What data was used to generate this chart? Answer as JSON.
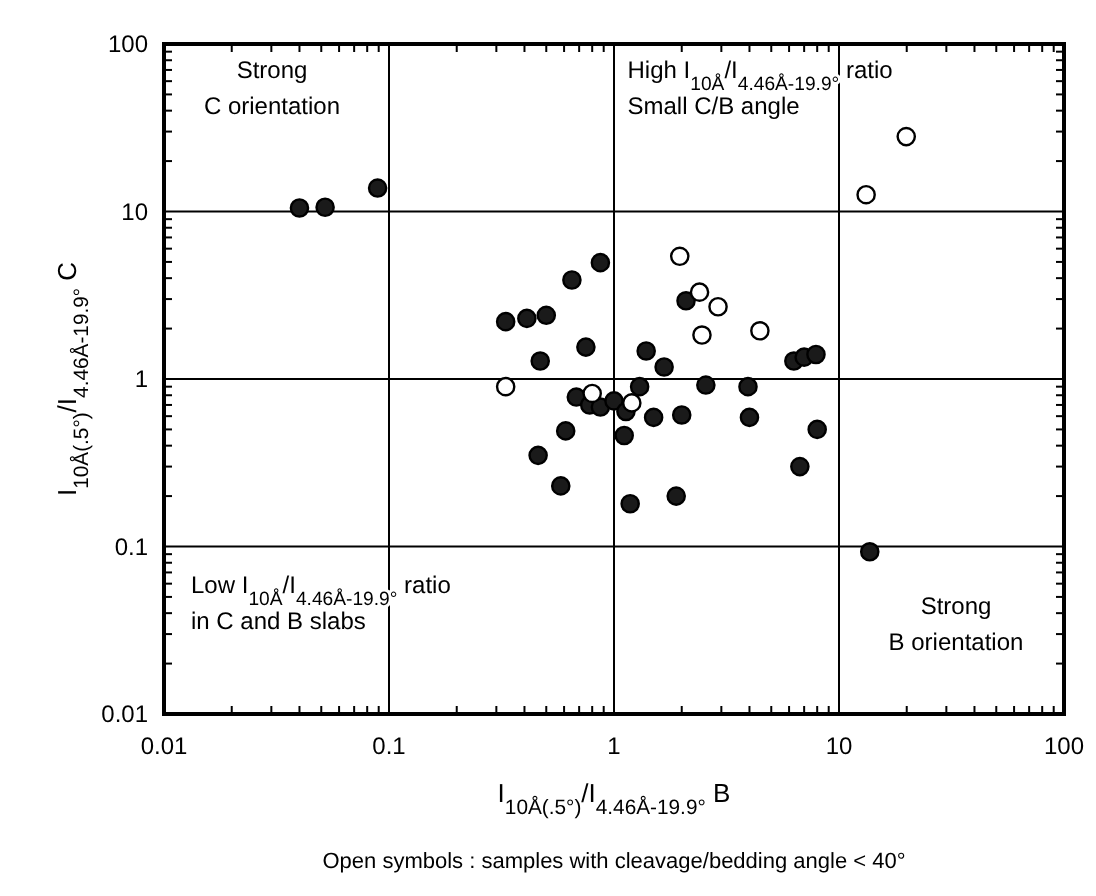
{
  "chart_data": {
    "type": "scatter",
    "xlabel": "I$_{10Å(.5°)}$/I$_{4.46Å-19.9°}$ B",
    "ylabel": "I$_{10Å(.5°)}$/I$_{4.46Å-19.9°}$ C",
    "log": "xy",
    "grid": true,
    "marker": "circle",
    "xlim": [
      0.01,
      100
    ],
    "xticks": [
      0.01,
      0.1,
      1,
      10,
      100
    ],
    "ylim": [
      0.01,
      100
    ],
    "yticks": [
      0.01,
      0.1,
      1,
      10,
      100
    ],
    "annotations": [
      "Strong\nC orientation",
      "High I$_{10Å}$/I$_{4.46Å-19.9°}$ ratio\nSmall C/B angle",
      "Low I$_{10Å}$/I$_{4.46Å-19.9°}$ ratio\nin C and B slabs",
      "Strong\nB orientation",
      "Open symbols : samples with cleavage/bedding angle < 40°"
    ],
    "series": [
      {
        "color": "#1a1a1a",
        "x": [
          0.04,
          0.052,
          0.089,
          0.87,
          0.65,
          0.33,
          0.41,
          0.5,
          0.47,
          0.75,
          1.39,
          1.67,
          2.09,
          6.3,
          7.0,
          7.9,
          2.56,
          3.94,
          0.68,
          0.78,
          0.87,
          1.0,
          1.13,
          1.3,
          1.5,
          2.0,
          4.0,
          0.61,
          0.46,
          0.58,
          1.11,
          1.18,
          1.89,
          8.0,
          6.7,
          13.7
        ],
        "values": [
          10.5,
          10.6,
          13.8,
          4.95,
          3.9,
          2.2,
          2.3,
          2.4,
          1.28,
          1.55,
          1.47,
          1.18,
          2.93,
          1.28,
          1.35,
          1.4,
          0.92,
          0.9,
          0.78,
          0.7,
          0.68,
          0.74,
          0.64,
          0.9,
          0.59,
          0.61,
          0.59,
          0.49,
          0.35,
          0.23,
          0.46,
          0.18,
          0.2,
          0.5,
          0.3,
          0.093
        ]
      },
      {
        "color": "#ffffff",
        "x": [
          1.96,
          2.4,
          2.9,
          2.46,
          4.45,
          19.9,
          13.2,
          0.33,
          0.8,
          1.2
        ],
        "values": [
          5.4,
          3.3,
          2.7,
          1.83,
          1.94,
          28,
          12.6,
          0.9,
          0.82,
          0.72
        ]
      }
    ]
  }
}
